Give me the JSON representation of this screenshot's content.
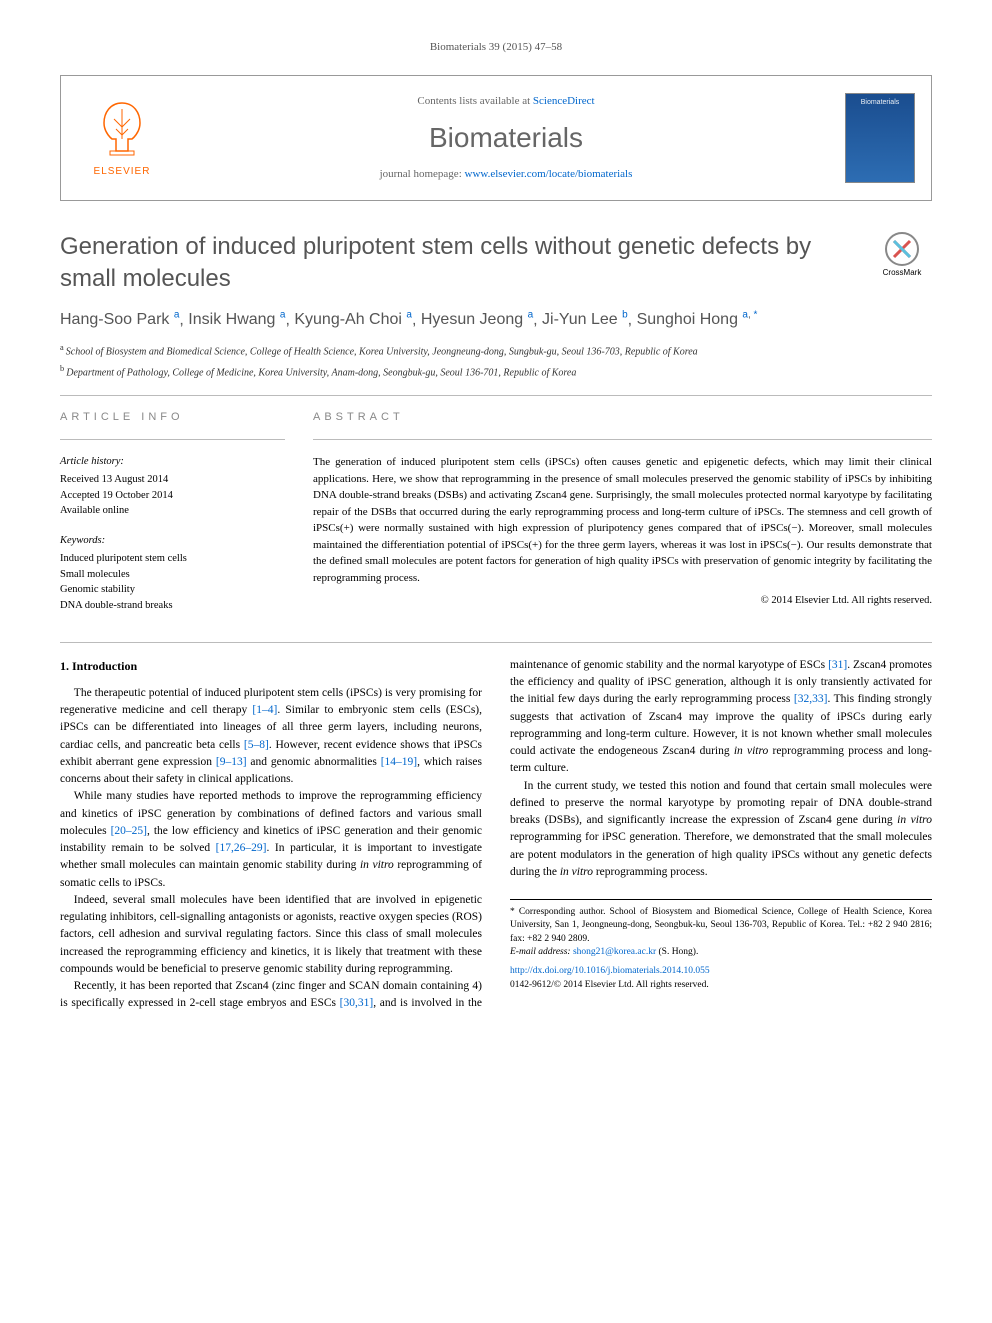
{
  "running_header": "Biomaterials 39 (2015) 47–58",
  "masthead": {
    "contents_prefix": "Contents lists available at ",
    "contents_link": "ScienceDirect",
    "journal_name": "Biomaterials",
    "homepage_prefix": "journal homepage: ",
    "homepage_link": "www.elsevier.com/locate/biomaterials",
    "publisher_name": "ELSEVIER",
    "cover_label": "Biomaterials",
    "publisher_color": "#ff6600",
    "link_color": "#0066cc"
  },
  "crossmark_label": "CrossMark",
  "title": "Generation of induced pluripotent stem cells without genetic defects by small molecules",
  "authors_html_parts": [
    {
      "name": "Hang-Soo Park",
      "aff": "a"
    },
    {
      "name": "Insik Hwang",
      "aff": "a"
    },
    {
      "name": "Kyung-Ah Choi",
      "aff": "a"
    },
    {
      "name": "Hyesun Jeong",
      "aff": "a"
    },
    {
      "name": "Ji-Yun Lee",
      "aff": "b"
    },
    {
      "name": "Sunghoi Hong",
      "aff": "a",
      "corr": true
    }
  ],
  "affiliations": [
    {
      "label": "a",
      "text": "School of Biosystem and Biomedical Science, College of Health Science, Korea University, Jeongneung-dong, Sungbuk-gu, Seoul 136-703, Republic of Korea"
    },
    {
      "label": "b",
      "text": "Department of Pathology, College of Medicine, Korea University, Anam-dong, Seongbuk-gu, Seoul 136-701, Republic of Korea"
    }
  ],
  "info_label": "ARTICLE INFO",
  "abstract_label": "ABSTRACT",
  "article_history_heading": "Article history:",
  "article_history": [
    "Received 13 August 2014",
    "Accepted 19 October 2014",
    "Available online"
  ],
  "keywords_heading": "Keywords:",
  "keywords": [
    "Induced pluripotent stem cells",
    "Small molecules",
    "Genomic stability",
    "DNA double-strand breaks"
  ],
  "abstract": "The generation of induced pluripotent stem cells (iPSCs) often causes genetic and epigenetic defects, which may limit their clinical applications. Here, we show that reprogramming in the presence of small molecules preserved the genomic stability of iPSCs by inhibiting DNA double-strand breaks (DSBs) and activating Zscan4 gene. Surprisingly, the small molecules protected normal karyotype by facilitating repair of the DSBs that occurred during the early reprogramming process and long-term culture of iPSCs. The stemness and cell growth of iPSCs(+) were normally sustained with high expression of pluripotency genes compared that of iPSCs(−). Moreover, small molecules maintained the differentiation potential of iPSCs(+) for the three germ layers, whereas it was lost in iPSCs(−). Our results demonstrate that the defined small molecules are potent factors for generation of high quality iPSCs with preservation of genomic integrity by facilitating the reprogramming process.",
  "copyright": "© 2014 Elsevier Ltd. All rights reserved.",
  "section_heading": "1. Introduction",
  "paragraphs": [
    "The therapeutic potential of induced pluripotent stem cells (iPSCs) is very promising for regenerative medicine and cell therapy [1–4]. Similar to embryonic stem cells (ESCs), iPSCs can be differentiated into lineages of all three germ layers, including neurons, cardiac cells, and pancreatic beta cells [5–8]. However, recent evidence shows that iPSCs exhibit aberrant gene expression [9–13] and genomic abnormalities [14–19], which raises concerns about their safety in clinical applications.",
    "While many studies have reported methods to improve the reprogramming efficiency and kinetics of iPSC generation by combinations of defined factors and various small molecules [20–25], the low efficiency and kinetics of iPSC generation and their genomic instability remain to be solved [17,26–29]. In particular, it is important to investigate whether small molecules can maintain genomic stability during in vitro reprogramming of somatic cells to iPSCs.",
    "Indeed, several small molecules have been identified that are involved in epigenetic regulating inhibitors, cell-signalling antagonists or agonists, reactive oxygen species (ROS) factors, cell adhesion and survival regulating factors. Since this class of small molecules increased the reprogramming efficiency and kinetics, it is likely that treatment with these compounds would be beneficial to preserve genomic stability during reprogramming.",
    "Recently, it has been reported that Zscan4 (zinc finger and SCAN domain containing 4) is specifically expressed in 2-cell stage embryos and ESCs [30,31], and is involved in the maintenance of genomic stability and the normal karyotype of ESCs [31]. Zscan4 promotes the efficiency and quality of iPSC generation, although it is only transiently activated for the initial few days during the early reprogramming process [32,33]. This finding strongly suggests that activation of Zscan4 may improve the quality of iPSCs during early reprogramming and long-term culture. However, it is not known whether small molecules could activate the endogeneous Zscan4 during in vitro reprogramming process and long-term culture.",
    "In the current study, we tested this notion and found that certain small molecules were defined to preserve the normal karyotype by promoting repair of DNA double-strand breaks (DSBs), and significantly increase the expression of Zscan4 gene during in vitro reprogramming for iPSC generation. Therefore, we demonstrated that the small molecules are potent modulators in the generation of high quality iPSCs without any genetic defects during the in vitro reprogramming process."
  ],
  "ref_ranges": [
    "[1–4]",
    "[5–8]",
    "[9–13]",
    "[14–19]",
    "[20–25]",
    "[17,26–29]",
    "[30,31]",
    "[31]",
    "[32,33]"
  ],
  "footnote": {
    "corr_marker": "*",
    "corr_text": "Corresponding author. School of Biosystem and Biomedical Science, College of Health Science, Korea University, San 1, Jeongneung-dong, Seongbuk-ku, Seoul 136-703, Republic of Korea. Tel.: +82 2 940 2816; fax: +82 2 940 2809.",
    "email_label": "E-mail address: ",
    "email": "shong21@korea.ac.kr",
    "email_suffix": " (S. Hong)."
  },
  "doi": {
    "url": "http://dx.doi.org/10.1016/j.biomaterials.2014.10.055",
    "issn_line": "0142-9612/© 2014 Elsevier Ltd. All rights reserved."
  }
}
